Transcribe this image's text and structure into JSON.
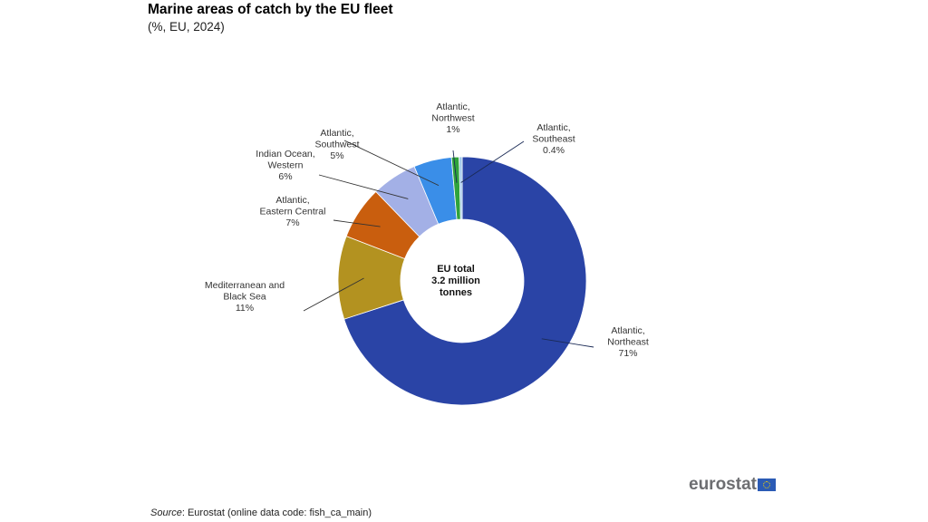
{
  "header": {
    "title": "Marine areas of catch by the EU fleet",
    "subtitle": "(%, EU, 2024)"
  },
  "chart_data": {
    "type": "pie",
    "variant": "donut",
    "title": "Marine areas of catch by the EU fleet",
    "subtitle": "(%, EU, 2024)",
    "unit": "%",
    "center_label": [
      "EU total",
      "3.2 million",
      "tonnes"
    ],
    "slices": [
      {
        "name": "Atlantic, Northeast",
        "label_lines": [
          "Atlantic,",
          "Northeast"
        ],
        "value": 71,
        "display": "71%",
        "color": "#2a44a6"
      },
      {
        "name": "Mediterranean and Black Sea",
        "label_lines": [
          "Mediterranean and",
          "Black Sea"
        ],
        "value": 11,
        "display": "11%",
        "color": "#b39220"
      },
      {
        "name": "Atlantic, Eastern Central",
        "label_lines": [
          "Atlantic,",
          "Eastern Central"
        ],
        "value": 7,
        "display": "7%",
        "color": "#c95e0e"
      },
      {
        "name": "Indian Ocean, Western",
        "label_lines": [
          "Indian Ocean,",
          "Western"
        ],
        "value": 6,
        "display": "6%",
        "color": "#a3b0e6"
      },
      {
        "name": "Atlantic, Southwest",
        "label_lines": [
          "Atlantic,",
          "Southwest"
        ],
        "value": 5,
        "display": "5%",
        "color": "#3a8ee8"
      },
      {
        "name": "Atlantic, Northwest",
        "label_lines": [
          "Atlantic,",
          "Northwest"
        ],
        "value": 1,
        "display": "1%",
        "color": "#2fa33c"
      },
      {
        "name": "Atlantic, Southeast",
        "label_lines": [
          "Atlantic,",
          "Southeast"
        ],
        "value": 0.4,
        "display": "0.4%",
        "color": "#9fc8e8"
      }
    ],
    "direction": "clockwise from top"
  },
  "footer": {
    "source_prefix": "Source",
    "source_text": ": Eurostat (online data code: fish_ca_main)",
    "logo_text": "eurostat"
  }
}
